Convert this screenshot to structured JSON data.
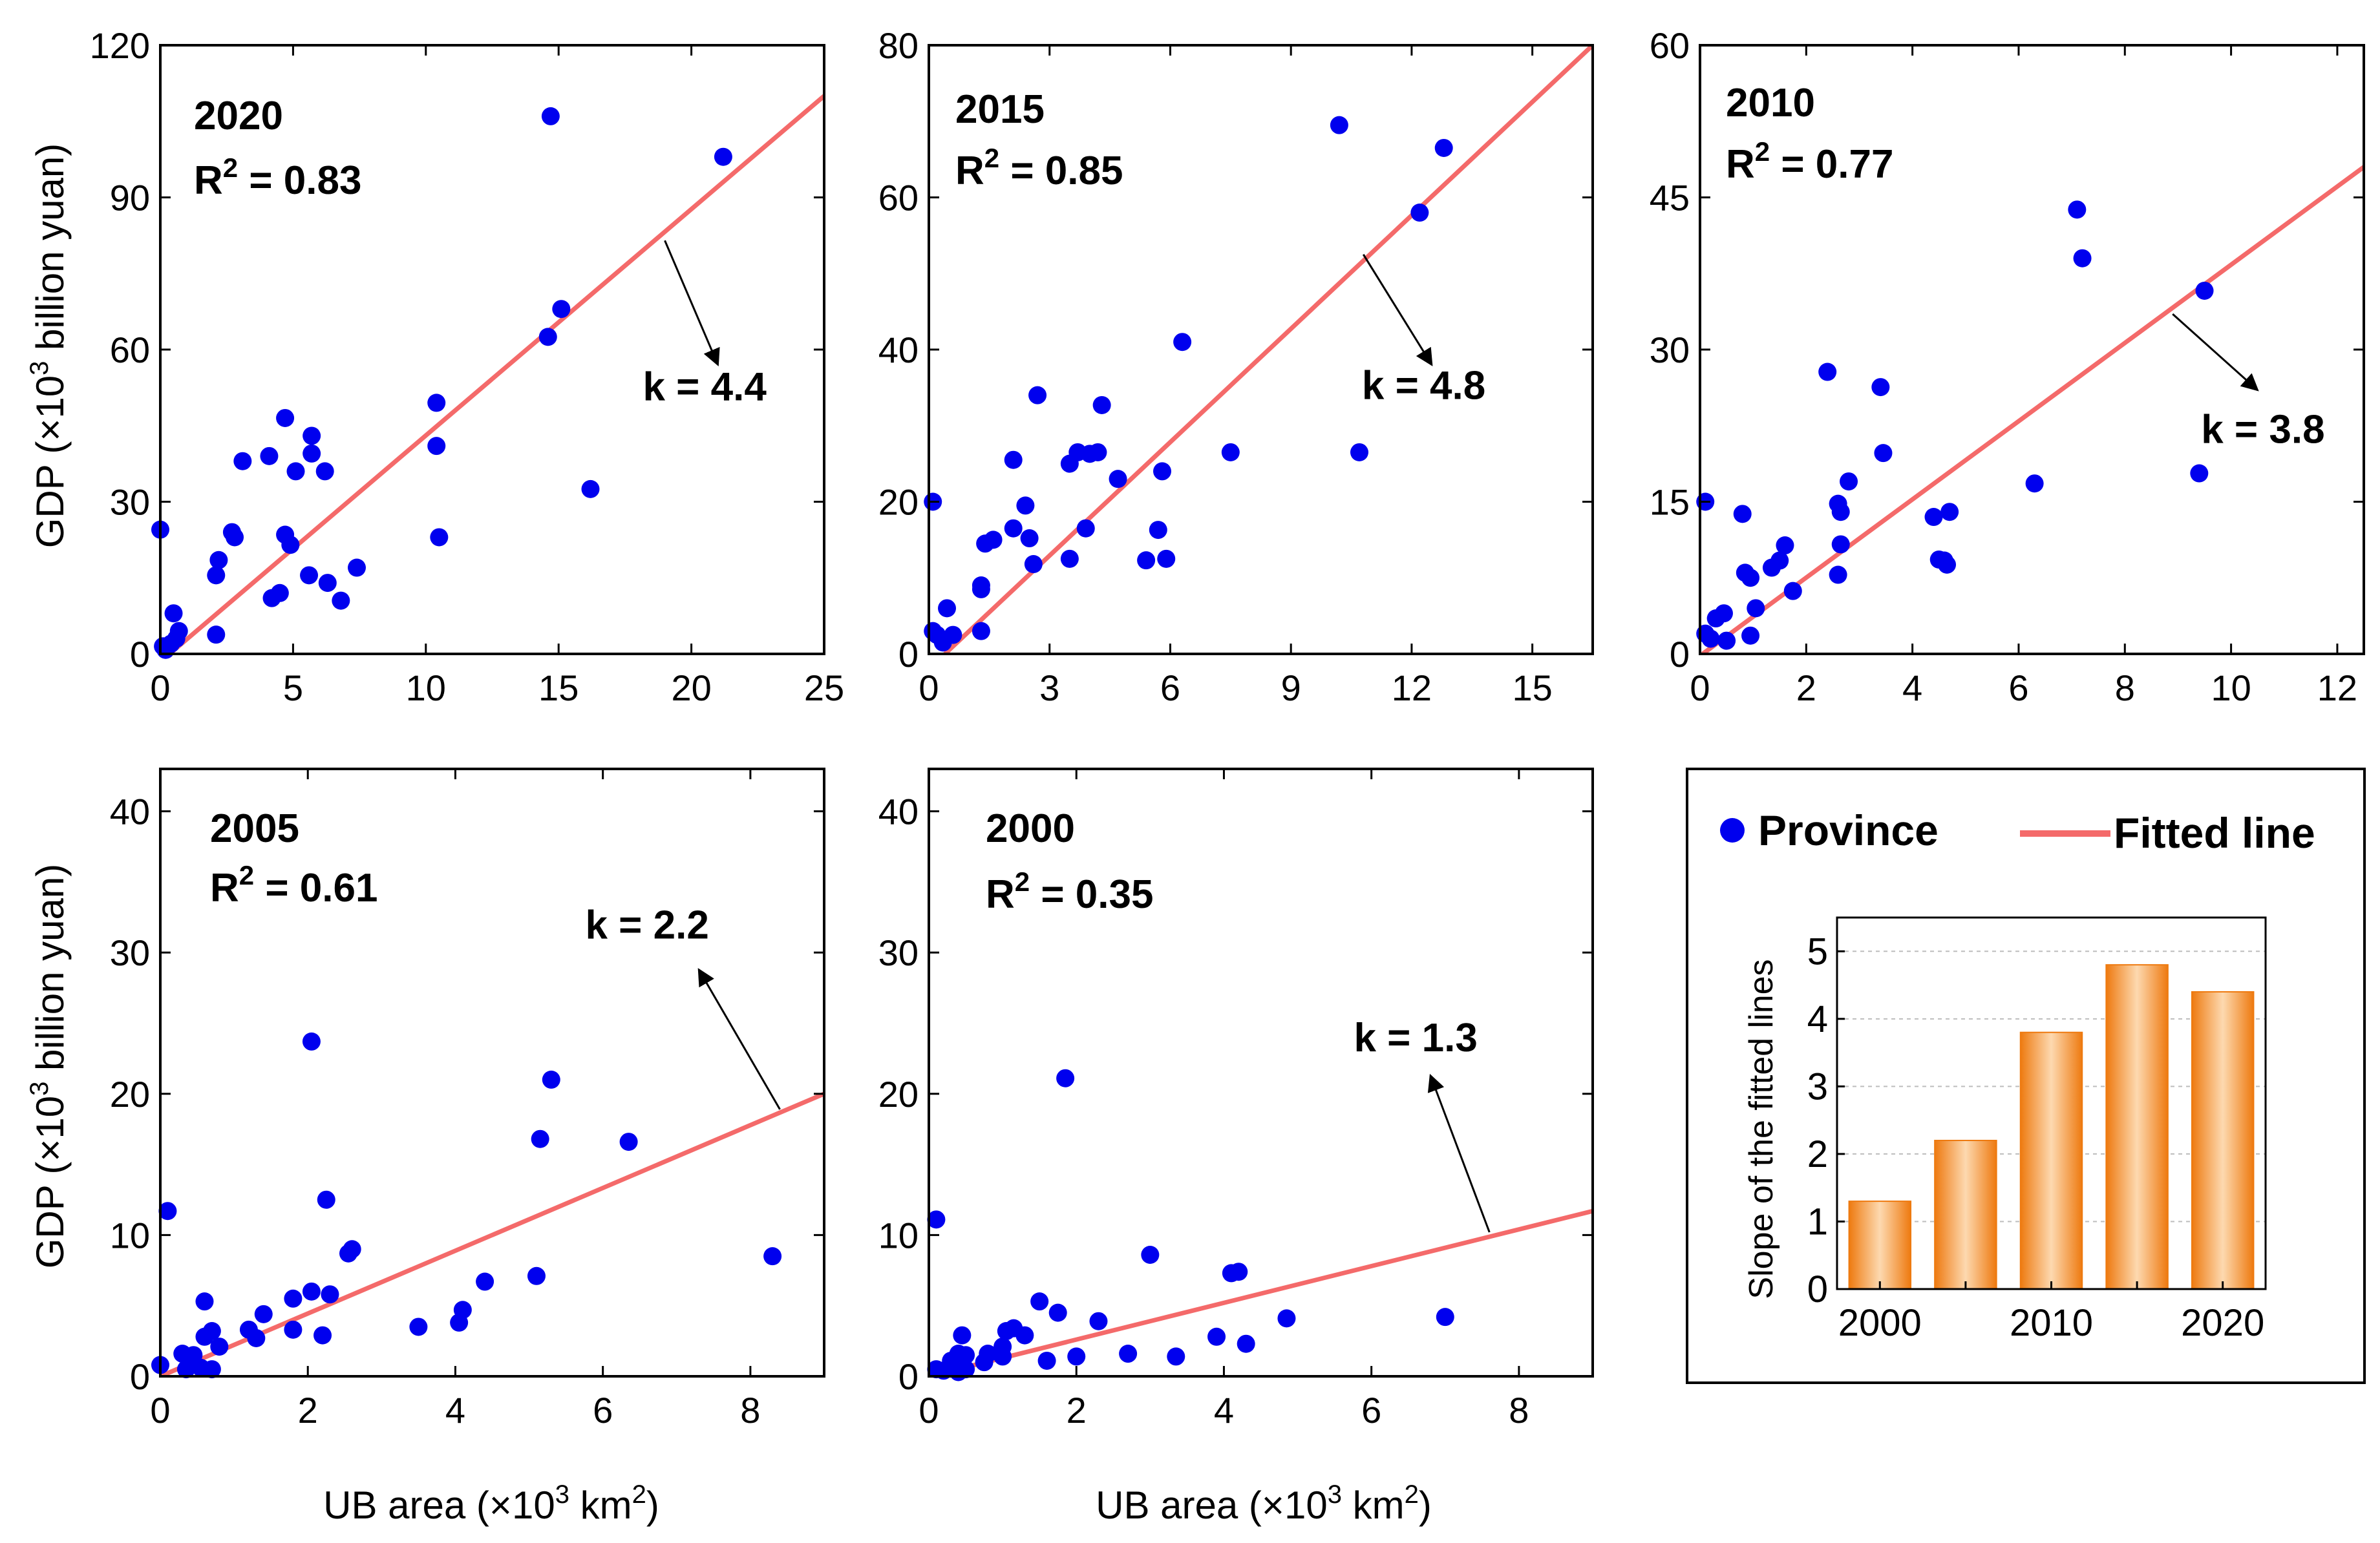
{
  "colors": {
    "point": "#0000ee",
    "fit": "#f46a6a",
    "bar_dark": "#ee7a10",
    "bar_light": "#fdd9b0"
  },
  "legend": {
    "point_label": "Province",
    "line_label": "Fitted line"
  },
  "labels": {
    "gdp_pre": "GDP (×10",
    "gdp_sup": "3",
    "gdp_post": " billion yuan)",
    "ub_pre": "UB area (×10",
    "ub_sup": "3",
    "ub_post": " km",
    "ub_sup2": "2",
    "ub_end": ")",
    "r2_pre": "R",
    "r2_sup": "2",
    "slope_axis": "Slope of the fitted lines"
  },
  "chart_data": [
    {
      "type": "scatter",
      "id": "p2020",
      "year": "2020",
      "r2_text": " = 0.83",
      "k_label": "k = 4.4",
      "slope": 4.4,
      "r2": 0.83,
      "xlim": [
        0,
        25
      ],
      "ylim": [
        0,
        120
      ],
      "xticks": [
        0,
        5,
        10,
        15,
        20,
        25
      ],
      "yticks": [
        0,
        30,
        60,
        90,
        120
      ],
      "fit": {
        "x0": 0.35,
        "y0": 0,
        "x1": 25,
        "y1": 110
      },
      "arrow": {
        "from": [
          19,
          81.5
        ],
        "to": [
          21,
          57
        ],
        "dir": "down"
      },
      "k_pos": [
        20.5,
        50
      ],
      "points": [
        [
          0,
          24.5
        ],
        [
          0.1,
          1.5
        ],
        [
          0.2,
          0.8
        ],
        [
          0.4,
          2
        ],
        [
          0.5,
          8
        ],
        [
          0.6,
          3
        ],
        [
          0.7,
          4.5
        ],
        [
          2.1,
          3.8
        ],
        [
          2.1,
          15.5
        ],
        [
          2.2,
          18.5
        ],
        [
          2.7,
          24
        ],
        [
          2.8,
          23
        ],
        [
          3.1,
          38
        ],
        [
          4.1,
          39
        ],
        [
          4.2,
          11
        ],
        [
          4.5,
          12
        ],
        [
          4.7,
          23.5
        ],
        [
          4.7,
          46.5
        ],
        [
          4.9,
          21.5
        ],
        [
          5.1,
          36
        ],
        [
          5.6,
          15.5
        ],
        [
          5.7,
          39.5
        ],
        [
          5.7,
          43
        ],
        [
          6.2,
          36
        ],
        [
          6.3,
          14
        ],
        [
          6.8,
          10.5
        ],
        [
          7.4,
          17
        ],
        [
          10.4,
          49.5
        ],
        [
          10.4,
          41
        ],
        [
          10.5,
          23
        ],
        [
          14.6,
          62.5
        ],
        [
          14.7,
          106
        ],
        [
          15.1,
          68
        ],
        [
          16.2,
          32.5
        ],
        [
          21.2,
          98
        ]
      ]
    },
    {
      "type": "scatter",
      "id": "p2015",
      "year": "2015",
      "r2_text": " = 0.85",
      "k_label": "k = 4.8",
      "slope": 4.8,
      "r2": 0.85,
      "xlim": [
        0,
        16.5
      ],
      "ylim": [
        0,
        80
      ],
      "xticks": [
        0,
        3,
        6,
        9,
        12,
        15
      ],
      "yticks": [
        0,
        20,
        40,
        60,
        80
      ],
      "fit": {
        "x0": 0.4,
        "y0": 0,
        "x1": 16.5,
        "y1": 80
      },
      "arrow": {
        "from": [
          10.8,
          52.5
        ],
        "to": [
          12.5,
          38
        ],
        "dir": "down"
      },
      "k_pos": [
        12.3,
        33.5
      ],
      "points": [
        [
          0.1,
          20
        ],
        [
          0.1,
          3
        ],
        [
          0.2,
          2.5
        ],
        [
          0.35,
          1.5
        ],
        [
          0.45,
          6
        ],
        [
          0.6,
          2.5
        ],
        [
          1.3,
          3
        ],
        [
          1.3,
          8.5
        ],
        [
          1.3,
          9
        ],
        [
          1.4,
          14.5
        ],
        [
          1.6,
          15
        ],
        [
          2.1,
          16.5
        ],
        [
          2.1,
          25.5
        ],
        [
          2.4,
          19.5
        ],
        [
          2.5,
          15.2
        ],
        [
          2.6,
          11.8
        ],
        [
          2.7,
          34
        ],
        [
          3.5,
          25
        ],
        [
          3.5,
          12.5
        ],
        [
          3.7,
          26.5
        ],
        [
          3.9,
          16.5
        ],
        [
          4,
          26.3
        ],
        [
          4.2,
          26.5
        ],
        [
          4.3,
          32.7
        ],
        [
          4.7,
          23
        ],
        [
          5.4,
          12.3
        ],
        [
          5.7,
          16.3
        ],
        [
          5.8,
          24
        ],
        [
          5.9,
          12.5
        ],
        [
          6.3,
          41
        ],
        [
          7.5,
          26.5
        ],
        [
          10.2,
          69.5
        ],
        [
          10.7,
          26.5
        ],
        [
          12.2,
          58
        ],
        [
          12.8,
          66.5
        ]
      ]
    },
    {
      "type": "scatter",
      "id": "p2010",
      "year": "2010",
      "r2_text": " = 0.77",
      "k_label": "k = 3.8",
      "slope": 3.8,
      "r2": 0.77,
      "xlim": [
        0,
        12.5
      ],
      "ylim": [
        0,
        60
      ],
      "xticks": [
        0,
        2,
        4,
        6,
        8,
        10,
        12
      ],
      "yticks": [
        0,
        15,
        30,
        45,
        60
      ],
      "fit": {
        "x0": 0.05,
        "y0": 0,
        "x1": 12.5,
        "y1": 48
      },
      "arrow": {
        "from": [
          8.9,
          33.5
        ],
        "to": [
          10.5,
          26
        ],
        "dir": "down"
      },
      "k_pos": [
        10.6,
        20.8
      ],
      "points": [
        [
          0.1,
          15
        ],
        [
          0.1,
          2
        ],
        [
          0.2,
          1.5
        ],
        [
          0.3,
          3.5
        ],
        [
          0.45,
          4
        ],
        [
          0.5,
          1.3
        ],
        [
          0.8,
          13.8
        ],
        [
          0.85,
          8
        ],
        [
          0.95,
          7.5
        ],
        [
          0.95,
          1.8
        ],
        [
          1.05,
          4.5
        ],
        [
          1.35,
          8.5
        ],
        [
          1.5,
          9.2
        ],
        [
          1.6,
          10.7
        ],
        [
          1.75,
          6.2
        ],
        [
          2.4,
          27.8
        ],
        [
          2.6,
          14.8
        ],
        [
          2.6,
          7.8
        ],
        [
          2.65,
          10.8
        ],
        [
          2.65,
          14
        ],
        [
          2.8,
          17
        ],
        [
          3.4,
          26.3
        ],
        [
          3.45,
          19.8
        ],
        [
          4.4,
          13.5
        ],
        [
          4.5,
          9.3
        ],
        [
          4.6,
          9.2
        ],
        [
          4.65,
          8.8
        ],
        [
          4.7,
          14
        ],
        [
          6.3,
          16.8
        ],
        [
          7.1,
          43.8
        ],
        [
          7.2,
          39
        ],
        [
          9.4,
          17.8
        ],
        [
          9.5,
          35.8
        ]
      ]
    },
    {
      "type": "scatter",
      "id": "p2005",
      "year": "2005",
      "r2_text": " = 0.61",
      "k_label": "k = 2.2",
      "slope": 2.2,
      "r2": 0.61,
      "xlim": [
        0,
        9
      ],
      "ylim": [
        0,
        43
      ],
      "xticks": [
        0,
        2,
        4,
        6,
        8
      ],
      "yticks": [
        0,
        10,
        20,
        30,
        40
      ],
      "fit": {
        "x0": 0,
        "y0": 0,
        "x1": 9,
        "y1": 20
      },
      "arrow": {
        "from": [
          8.4,
          18.9
        ],
        "to": [
          7.3,
          28.8
        ],
        "dir": "up"
      },
      "k_pos": [
        6.6,
        31
      ],
      "points": [
        [
          0,
          0.8
        ],
        [
          0.1,
          11.7
        ],
        [
          0.3,
          1.6
        ],
        [
          0.35,
          0.5
        ],
        [
          0.45,
          1.5
        ],
        [
          0.55,
          0.6
        ],
        [
          0.6,
          2.8
        ],
        [
          0.6,
          5.3
        ],
        [
          0.7,
          0.5
        ],
        [
          0.7,
          3.2
        ],
        [
          0.8,
          2.1
        ],
        [
          1.2,
          3.3
        ],
        [
          1.3,
          2.7
        ],
        [
          1.4,
          4.4
        ],
        [
          1.8,
          5.5
        ],
        [
          1.8,
          3.3
        ],
        [
          2.05,
          23.7
        ],
        [
          2.05,
          6
        ],
        [
          2.2,
          2.9
        ],
        [
          2.25,
          12.5
        ],
        [
          2.3,
          5.8
        ],
        [
          2.55,
          8.7
        ],
        [
          2.6,
          9
        ],
        [
          3.5,
          3.5
        ],
        [
          4.05,
          3.8
        ],
        [
          4.1,
          4.7
        ],
        [
          4.4,
          6.7
        ],
        [
          5.1,
          7.1
        ],
        [
          5.15,
          16.8
        ],
        [
          5.3,
          21
        ],
        [
          6.35,
          16.6
        ],
        [
          8.3,
          8.5
        ]
      ]
    },
    {
      "type": "scatter",
      "id": "p2000",
      "year": "2000",
      "r2_text": " = 0.35",
      "k_label": "k = 1.3",
      "slope": 1.3,
      "r2": 0.35,
      "xlim": [
        0,
        9
      ],
      "ylim": [
        0,
        43
      ],
      "xticks": [
        0,
        2,
        4,
        6,
        8
      ],
      "yticks": [
        0,
        10,
        20,
        30,
        40
      ],
      "fit": {
        "x0": 0,
        "y0": 0,
        "x1": 9,
        "y1": 11.7
      },
      "arrow": {
        "from": [
          7.6,
          10.2
        ],
        "to": [
          6.8,
          21.3
        ],
        "dir": "up"
      },
      "k_pos": [
        6.6,
        23
      ],
      "points": [
        [
          0.1,
          11.1
        ],
        [
          0.1,
          0.5
        ],
        [
          0.2,
          0.4
        ],
        [
          0.3,
          1.1
        ],
        [
          0.4,
          1.6
        ],
        [
          0.4,
          0.3
        ],
        [
          0.45,
          2.9
        ],
        [
          0.5,
          1.5
        ],
        [
          0.5,
          0.5
        ],
        [
          0.75,
          1
        ],
        [
          0.8,
          1.6
        ],
        [
          1,
          1.4
        ],
        [
          1,
          2.1
        ],
        [
          1.05,
          3.2
        ],
        [
          1.15,
          3.4
        ],
        [
          1.3,
          2.9
        ],
        [
          1.5,
          5.3
        ],
        [
          1.6,
          1.1
        ],
        [
          1.75,
          4.5
        ],
        [
          1.85,
          21.1
        ],
        [
          2,
          1.4
        ],
        [
          2.3,
          3.9
        ],
        [
          2.7,
          1.6
        ],
        [
          3,
          8.6
        ],
        [
          3.35,
          1.4
        ],
        [
          3.9,
          2.8
        ],
        [
          4.1,
          7.3
        ],
        [
          4.2,
          7.4
        ],
        [
          4.3,
          2.3
        ],
        [
          4.85,
          4.1
        ],
        [
          7,
          4.2
        ]
      ]
    },
    {
      "type": "bar",
      "id": "slopes",
      "categories": [
        "2000",
        "2005",
        "2010",
        "2015",
        "2020"
      ],
      "x": [
        2000,
        2005,
        2010,
        2015,
        2020
      ],
      "values": [
        1.3,
        2.2,
        3.8,
        4.8,
        4.4
      ],
      "xticks": [
        "2000",
        "2010",
        "2020"
      ],
      "yticks": [
        0,
        1,
        2,
        3,
        4,
        5
      ],
      "ylim": [
        0,
        5.5
      ],
      "ylabel": "Slope of the fitted lines",
      "grid": true
    }
  ]
}
